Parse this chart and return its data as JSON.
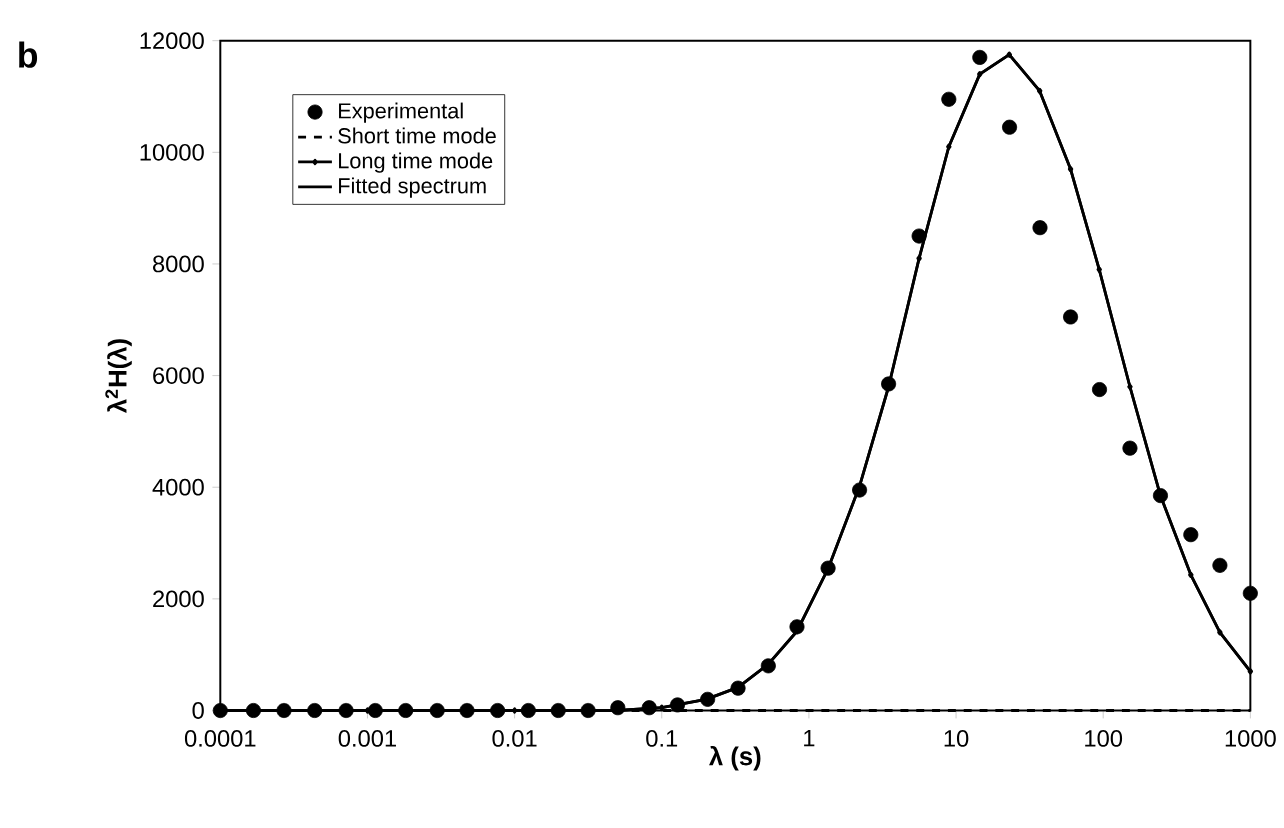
{
  "chart_data": {
    "type": "line",
    "xlabel": "λ (s)",
    "ylabel": "λ$^{2}$H(λ)",
    "annotations": [
      "b"
    ],
    "log": "x",
    "xlim": [
      0.0001,
      1000
    ],
    "ylim": [
      0,
      12000
    ],
    "xticks": [
      0.0001,
      0.001,
      0.01,
      0.1,
      1,
      10,
      100,
      1000
    ],
    "yticks": [
      0,
      2000,
      4000,
      6000,
      8000,
      10000,
      12000
    ],
    "grid": false,
    "legend": "top left",
    "series": [
      {
        "name": "Experimental",
        "type": "scatter",
        "marker": "circle",
        "color": "#000000",
        "x": [
          0.0001,
          0.000168,
          0.000271,
          0.000438,
          0.000716,
          0.00113,
          0.00182,
          0.00298,
          0.00475,
          0.00767,
          0.0124,
          0.0198,
          0.0316,
          0.0503,
          0.0822,
          0.128,
          0.205,
          0.33,
          0.53,
          0.83,
          1.35,
          2.21,
          3.48,
          5.61,
          8.93,
          14.5,
          23.1,
          37.2,
          60,
          94.4,
          152,
          245,
          394,
          621,
          1000
        ],
        "values": [
          0,
          0,
          0,
          0,
          0,
          0,
          0,
          0,
          0,
          0,
          0,
          0,
          0,
          50,
          50,
          100,
          200,
          400,
          800,
          1500,
          2550,
          3950,
          5850,
          8500,
          10950,
          11700,
          10450,
          8650,
          7050,
          5750,
          4700,
          3850,
          3150,
          2600,
          2100
        ]
      },
      {
        "name": "Short time mode",
        "marker": "none",
        "line_style": "dashed",
        "color": "#000000",
        "x": [
          0.0001,
          0.001,
          0.01,
          0.1,
          1,
          10,
          100,
          1000
        ],
        "values": [
          0,
          0,
          0,
          0,
          0,
          0,
          0,
          0
        ]
      },
      {
        "name": "Long time mode",
        "marker": "diamond",
        "line_style": "solid",
        "color": "#000000",
        "x": [
          0.0001,
          0.001,
          0.01,
          0.05,
          0.1,
          0.2,
          0.33,
          0.53,
          0.83,
          1.35,
          2.21,
          3.48,
          5.61,
          8.93,
          14.5,
          23,
          37,
          60,
          94,
          152,
          245,
          394,
          621,
          1000
        ],
        "values": [
          0,
          0,
          0,
          0,
          50,
          200,
          414,
          830,
          1420,
          2540,
          4020,
          5800,
          8100,
          10100,
          11400,
          11750,
          11100,
          9700,
          7900,
          5800,
          3850,
          2430,
          1400,
          700
        ]
      },
      {
        "name": "Fitted spectrum",
        "marker": "none",
        "line_style": "solid",
        "color": "#000000",
        "x": [
          0.0001,
          0.001,
          0.01,
          0.05,
          0.1,
          0.2,
          0.33,
          0.53,
          0.83,
          1.35,
          2.21,
          3.48,
          5.61,
          8.93,
          14.5,
          23,
          37,
          60,
          94,
          152,
          245,
          394,
          621,
          1000
        ],
        "values": [
          0,
          0,
          0,
          0,
          50,
          200,
          414,
          830,
          1420,
          2540,
          4020,
          5800,
          8100,
          10100,
          11400,
          11750,
          11100,
          9700,
          7900,
          5800,
          3850,
          2430,
          1400,
          700
        ]
      }
    ]
  }
}
